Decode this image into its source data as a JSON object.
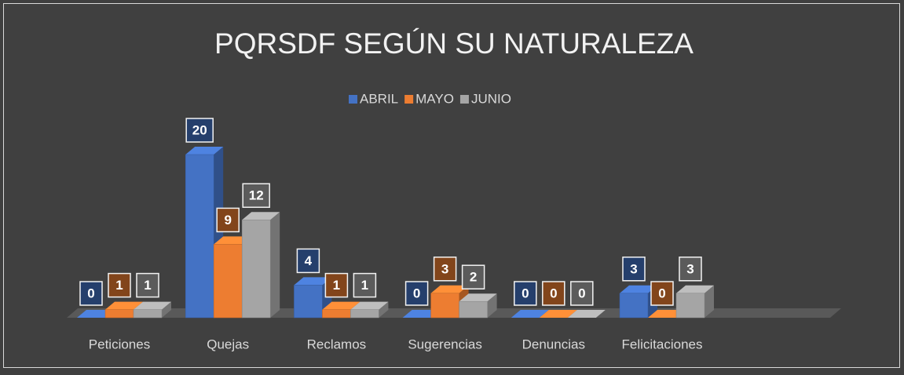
{
  "chart_data": {
    "type": "bar3d",
    "title": "PQRSDF SEGÚN SU NATURALEZA",
    "categories": [
      "Peticiones",
      "Quejas",
      "Reclamos",
      "Sugerencias",
      "Denuncias",
      "Felicitaciones"
    ],
    "series": [
      {
        "name": "ABRIL",
        "color": "#4472c4",
        "values": [
          0,
          20,
          4,
          0,
          0,
          3
        ]
      },
      {
        "name": "MAYO",
        "color": "#ed7d31",
        "values": [
          1,
          9,
          1,
          3,
          0,
          0
        ]
      },
      {
        "name": "JUNIO",
        "color": "#a5a5a5",
        "values": [
          1,
          12,
          1,
          2,
          0,
          3
        ]
      }
    ],
    "legend": "top"
  }
}
